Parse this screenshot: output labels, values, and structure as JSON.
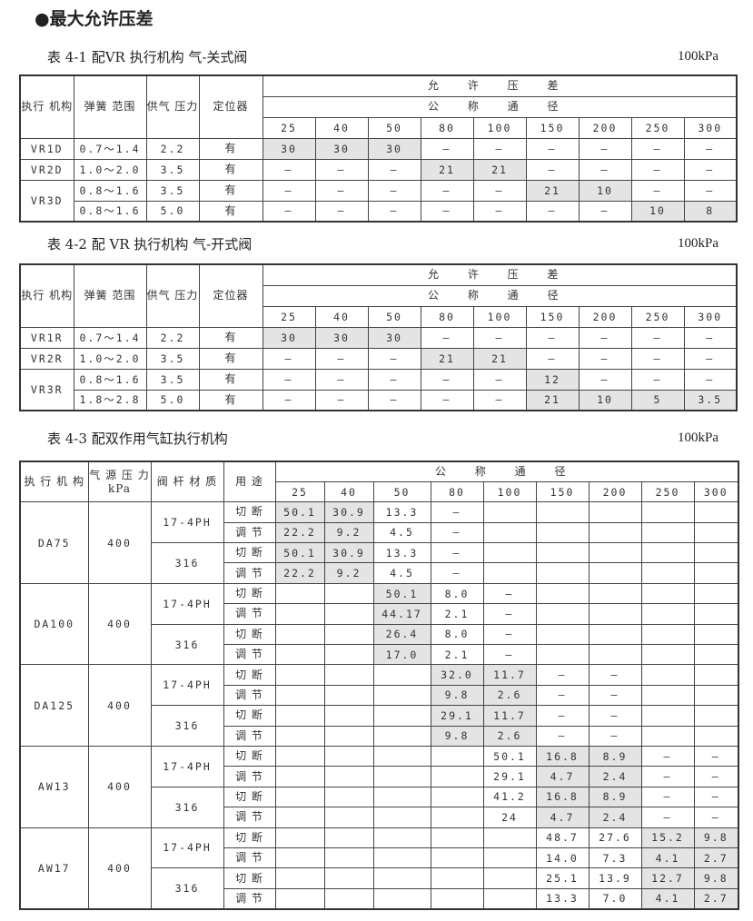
{
  "heading": "●最大允许压差",
  "diameters": [
    "25",
    "40",
    "50",
    "80",
    "100",
    "150",
    "200",
    "250",
    "300"
  ],
  "table1": {
    "caption": "表 4-1 配VR 执行机构  气-关式阀",
    "unit": "100kPa",
    "headers": {
      "actuator": "执行 机构",
      "spring": "弹簧 范围",
      "supply": "供气 压力",
      "positioner": "定位器",
      "allowable": "允 许 压 差",
      "nominal": "公 称 通 径"
    },
    "rows": [
      {
        "actuator": "VR1D",
        "span": 1,
        "spring": "0.7～1.4",
        "supply": "2.2",
        "positioner": "有",
        "values": [
          "30",
          "30",
          "30",
          "—",
          "—",
          "—",
          "—",
          "—",
          "—"
        ],
        "shaded": [
          0,
          1,
          2
        ]
      },
      {
        "actuator": "VR2D",
        "span": 1,
        "spring": "1.0～2.0",
        "supply": "3.5",
        "positioner": "有",
        "values": [
          "—",
          "—",
          "—",
          "21",
          "21",
          "—",
          "—",
          "—",
          "—"
        ],
        "shaded": [
          3,
          4
        ]
      },
      {
        "actuator": "VR3D",
        "span": 2,
        "spring": "0.8～1.6",
        "supply": "3.5",
        "positioner": "有",
        "values": [
          "—",
          "—",
          "—",
          "—",
          "—",
          "21",
          "10",
          "—",
          "—"
        ],
        "shaded": [
          5,
          6
        ]
      },
      {
        "actuator": null,
        "spring": "0.8～1.6",
        "supply": "5.0",
        "positioner": "有",
        "values": [
          "—",
          "—",
          "—",
          "—",
          "—",
          "—",
          "—",
          "10",
          "8"
        ],
        "shaded": [
          7,
          8
        ]
      }
    ]
  },
  "table2": {
    "caption": "表 4-2 配 VR 执行机构 气-开式阀",
    "unit": "100kPa",
    "headers": {
      "actuator": "执行 机构",
      "spring": "弹簧 范围",
      "supply": "供气 压力",
      "positioner": "定位器",
      "allowable": "允 许 压 差",
      "nominal": "公 称 通 径"
    },
    "rows": [
      {
        "actuator": "VR1R",
        "span": 1,
        "spring": "0.7～1.4",
        "supply": "2.2",
        "positioner": "有",
        "values": [
          "30",
          "30",
          "30",
          "—",
          "—",
          "—",
          "—",
          "—",
          "—"
        ],
        "shaded": [
          0,
          1,
          2
        ]
      },
      {
        "actuator": "VR2R",
        "span": 1,
        "spring": "1.0～2.0",
        "supply": "3.5",
        "positioner": "有",
        "values": [
          "—",
          "—",
          "—",
          "21",
          "21",
          "—",
          "—",
          "—",
          "—"
        ],
        "shaded": [
          3,
          4
        ]
      },
      {
        "actuator": "VR3R",
        "span": 2,
        "spring": "0.8～1.6",
        "supply": "3.5",
        "positioner": "有",
        "values": [
          "—",
          "—",
          "—",
          "—",
          "—",
          "12",
          "—",
          "—",
          "—"
        ],
        "shaded": [
          5
        ]
      },
      {
        "actuator": null,
        "spring": "1.8～2.8",
        "supply": "5.0",
        "positioner": "有",
        "values": [
          "—",
          "—",
          "—",
          "—",
          "—",
          "21",
          "10",
          "5",
          "3.5"
        ],
        "shaded": [
          5,
          6,
          7,
          8
        ]
      }
    ]
  },
  "table3": {
    "caption": "表 4-3 配双作用气缸执行机构",
    "unit": "100kPa",
    "headers": {
      "actuator": "执 行 机 构",
      "source": "气 源 压 力 kPa",
      "stem": "阀 杆 材 质",
      "usage": "用 途",
      "nominal": "公 称 通 径"
    },
    "groups": [
      {
        "actuator": "DA75",
        "pressure": "400",
        "shaded": [
          0,
          1
        ],
        "materials": [
          {
            "name": "17-4PH",
            "rows": [
              {
                "usage": "切 断",
                "values": [
                  "50.1",
                  "30.9",
                  "13.3",
                  "—",
                  "",
                  "",
                  "",
                  "",
                  ""
                ]
              },
              {
                "usage": "调 节",
                "values": [
                  "22.2",
                  "9.2",
                  "4.5",
                  "—",
                  "",
                  "",
                  "",
                  "",
                  ""
                ]
              }
            ]
          },
          {
            "name": "316",
            "rows": [
              {
                "usage": "切 断",
                "values": [
                  "50.1",
                  "30.9",
                  "13.3",
                  "—",
                  "",
                  "",
                  "",
                  "",
                  ""
                ]
              },
              {
                "usage": "调 节",
                "values": [
                  "22.2",
                  "9.2",
                  "4.5",
                  "—",
                  "",
                  "",
                  "",
                  "",
                  ""
                ]
              }
            ]
          }
        ]
      },
      {
        "actuator": "DA100",
        "pressure": "400",
        "shaded": [
          2
        ],
        "materials": [
          {
            "name": "17-4PH",
            "rows": [
              {
                "usage": "切 断",
                "values": [
                  "",
                  "",
                  "50.1",
                  "8.0",
                  "—",
                  "",
                  "",
                  "",
                  ""
                ]
              },
              {
                "usage": "调 节",
                "values": [
                  "",
                  "",
                  "44.17",
                  "2.1",
                  "—",
                  "",
                  "",
                  "",
                  ""
                ]
              }
            ]
          },
          {
            "name": "316",
            "rows": [
              {
                "usage": "切 断",
                "values": [
                  "",
                  "",
                  "26.4",
                  "8.0",
                  "—",
                  "",
                  "",
                  "",
                  ""
                ]
              },
              {
                "usage": "调 节",
                "values": [
                  "",
                  "",
                  "17.0",
                  "2.1",
                  "—",
                  "",
                  "",
                  "",
                  ""
                ]
              }
            ]
          }
        ]
      },
      {
        "actuator": "DA125",
        "pressure": "400",
        "shaded": [
          3,
          4
        ],
        "materials": [
          {
            "name": "17-4PH",
            "rows": [
              {
                "usage": "切 断",
                "values": [
                  "",
                  "",
                  "",
                  "32.0",
                  "11.7",
                  "—",
                  "—",
                  "",
                  ""
                ]
              },
              {
                "usage": "调 节",
                "values": [
                  "",
                  "",
                  "",
                  "9.8",
                  "2.6",
                  "—",
                  "—",
                  "",
                  ""
                ]
              }
            ]
          },
          {
            "name": "316",
            "rows": [
              {
                "usage": "切 断",
                "values": [
                  "",
                  "",
                  "",
                  "29.1",
                  "11.7",
                  "—",
                  "—",
                  "",
                  ""
                ]
              },
              {
                "usage": "调 节",
                "values": [
                  "",
                  "",
                  "",
                  "9.8",
                  "2.6",
                  "—",
                  "—",
                  "",
                  ""
                ]
              }
            ]
          }
        ]
      },
      {
        "actuator": "AW13",
        "pressure": "400",
        "shaded": [
          5,
          6
        ],
        "materials": [
          {
            "name": "17-4PH",
            "rows": [
              {
                "usage": "切 断",
                "values": [
                  "",
                  "",
                  "",
                  "",
                  "50.1",
                  "16.8",
                  "8.9",
                  "—",
                  "—"
                ]
              },
              {
                "usage": "调 节",
                "values": [
                  "",
                  "",
                  "",
                  "",
                  "29.1",
                  "4.7",
                  "2.4",
                  "—",
                  "—"
                ]
              }
            ]
          },
          {
            "name": "316",
            "rows": [
              {
                "usage": "切 断",
                "values": [
                  "",
                  "",
                  "",
                  "",
                  "41.2",
                  "16.8",
                  "8.9",
                  "—",
                  "—"
                ]
              },
              {
                "usage": "调 节",
                "values": [
                  "",
                  "",
                  "",
                  "",
                  "24",
                  "4.7",
                  "2.4",
                  "—",
                  "—"
                ]
              }
            ]
          }
        ]
      },
      {
        "actuator": "AW17",
        "pressure": "400",
        "shaded": [
          7,
          8
        ],
        "materials": [
          {
            "name": "17-4PH",
            "rows": [
              {
                "usage": "切 断",
                "values": [
                  "",
                  "",
                  "",
                  "",
                  "",
                  "48.7",
                  "27.6",
                  "15.2",
                  "9.8"
                ]
              },
              {
                "usage": "调 节",
                "values": [
                  "",
                  "",
                  "",
                  "",
                  "",
                  "14.0",
                  "7.3",
                  "4.1",
                  "2.7"
                ]
              }
            ]
          },
          {
            "name": "316",
            "rows": [
              {
                "usage": "切 断",
                "values": [
                  "",
                  "",
                  "",
                  "",
                  "",
                  "25.1",
                  "13.9",
                  "12.7",
                  "9.8"
                ]
              },
              {
                "usage": "调 节",
                "values": [
                  "",
                  "",
                  "",
                  "",
                  "",
                  "13.3",
                  "7.0",
                  "4.1",
                  "2.7"
                ]
              }
            ]
          }
        ]
      }
    ]
  },
  "colors": {
    "shade": "#e4e4e4",
    "border": "#444444",
    "text": "#222222"
  }
}
